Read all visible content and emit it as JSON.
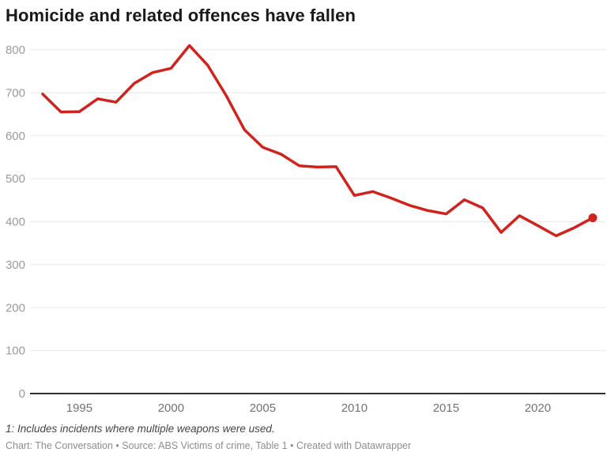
{
  "chart": {
    "title": "Homicide and related offences have fallen",
    "footnote": "1: Includes incidents where multiple weapons were used.",
    "byline": "Chart: The Conversation • Source: ABS Victims of crime, Table 1 • Created with Datawrapper"
  },
  "chart_data": {
    "type": "line",
    "title": "Homicide and related offences have fallen",
    "xlabel": "",
    "ylabel": "",
    "x": [
      1993,
      1994,
      1995,
      1996,
      1997,
      1998,
      1999,
      2000,
      2001,
      2002,
      2003,
      2004,
      2005,
      2006,
      2007,
      2008,
      2009,
      2010,
      2011,
      2012,
      2013,
      2014,
      2015,
      2016,
      2017,
      2018,
      2019,
      2020,
      2021,
      2022,
      2023
    ],
    "series": [
      {
        "name": "Homicide and related offences",
        "values": [
          697,
          655,
          656,
          686,
          678,
          722,
          747,
          757,
          810,
          764,
          694,
          614,
          573,
          557,
          530,
          527,
          528,
          461,
          470,
          455,
          438,
          426,
          418,
          451,
          432,
          375,
          414,
          391,
          367,
          386,
          409
        ]
      }
    ],
    "ylim": [
      0,
      800
    ],
    "yticks": [
      0,
      100,
      200,
      300,
      400,
      500,
      600,
      700,
      800
    ],
    "xticks": [
      1995,
      2000,
      2005,
      2010,
      2015,
      2020
    ],
    "grid": true,
    "legend": false,
    "endpoint_dot": true
  },
  "colors": {
    "line": "#d0231e",
    "grid": "#e9e9e9",
    "baseline": "#2f2f2f",
    "y_tick_label": "#9b9b9b",
    "x_tick_label": "#737373",
    "title": "#1a1a1a",
    "footnote": "#454545",
    "byline": "#8e8e8e"
  }
}
